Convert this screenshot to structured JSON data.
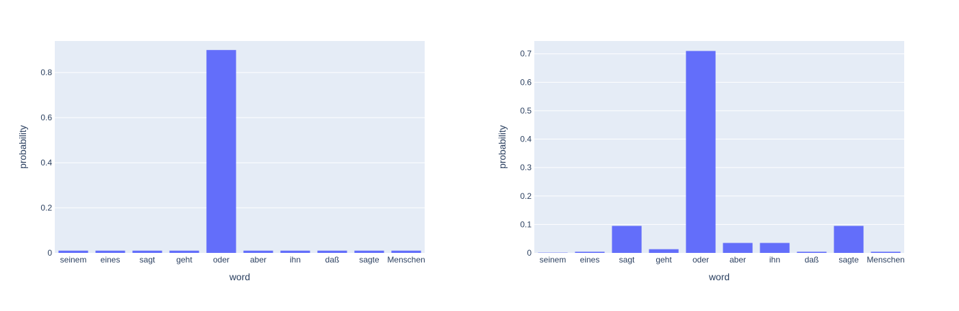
{
  "colors": {
    "bar": "#636efa",
    "plot_background": "#e5ecf6",
    "grid": "#ffffff",
    "text": "#2a3f5f"
  },
  "chart_data": [
    {
      "type": "bar",
      "xlabel": "word",
      "ylabel": "probability",
      "categories": [
        "seinem",
        "eines",
        "sagt",
        "geht",
        "oder",
        "aber",
        "ihn",
        "daß",
        "sagte",
        "Menschen"
      ],
      "values": [
        0.01,
        0.01,
        0.01,
        0.01,
        0.9,
        0.01,
        0.01,
        0.01,
        0.01,
        0.01
      ],
      "ylim": [
        0,
        0.94
      ],
      "yticks": [
        0,
        0.2,
        0.4,
        0.6,
        0.8
      ],
      "ytick_labels": [
        "0",
        "0.2",
        "0.4",
        "0.6",
        "0.8"
      ],
      "grid": true
    },
    {
      "type": "bar",
      "xlabel": "word",
      "ylabel": "probability",
      "categories": [
        "seinem",
        "eines",
        "sagt",
        "geht",
        "oder",
        "aber",
        "ihn",
        "daß",
        "sagte",
        "Menschen"
      ],
      "values": [
        0.001,
        0.004,
        0.095,
        0.013,
        0.71,
        0.035,
        0.035,
        0.004,
        0.095,
        0.004
      ],
      "ylim": [
        0,
        0.745
      ],
      "yticks": [
        0,
        0.1,
        0.2,
        0.3,
        0.4,
        0.5,
        0.6,
        0.7
      ],
      "ytick_labels": [
        "0",
        "0.1",
        "0.2",
        "0.3",
        "0.4",
        "0.5",
        "0.6",
        "0.7"
      ],
      "grid": true
    }
  ]
}
